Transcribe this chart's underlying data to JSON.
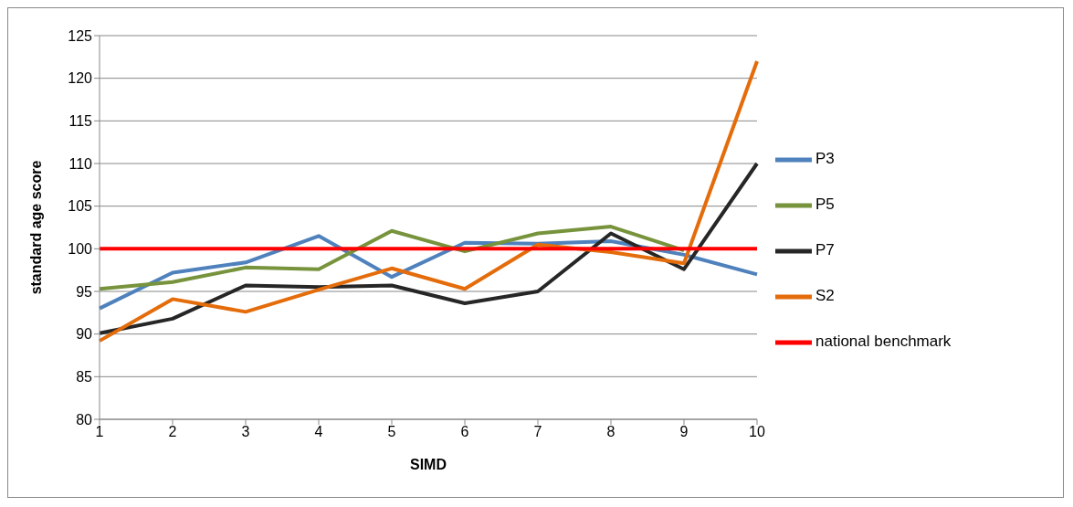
{
  "chart_data": {
    "type": "line",
    "xlabel": "SIMD",
    "ylabel": "standard age score",
    "categories": [
      "1",
      "2",
      "3",
      "4",
      "5",
      "6",
      "7",
      "8",
      "9",
      "10"
    ],
    "series": [
      {
        "name": "P3",
        "color": "#4f81bd",
        "values": [
          93,
          97.2,
          98.4,
          101.5,
          96.7,
          100.7,
          100.6,
          100.9,
          99.3,
          97
        ]
      },
      {
        "name": "P5",
        "color": "#77933c",
        "values": [
          95.3,
          96.1,
          97.8,
          97.6,
          102.1,
          99.7,
          101.8,
          102.6,
          99.8,
          null
        ]
      },
      {
        "name": "P7",
        "color": "#262626",
        "values": [
          90.1,
          91.8,
          95.7,
          95.5,
          95.7,
          93.6,
          95,
          101.8,
          97.6,
          110
        ]
      },
      {
        "name": "S2",
        "color": "#e46c0a",
        "values": [
          89.2,
          94.1,
          92.6,
          95.2,
          97.7,
          95.3,
          100.5,
          99.6,
          98.3,
          122
        ]
      },
      {
        "name": "national benchmark",
        "color": "#ff0000",
        "values": [
          100,
          100,
          100,
          100,
          100,
          100,
          100,
          100,
          100,
          100
        ]
      }
    ],
    "ylim": [
      80,
      125
    ],
    "yticks": [
      80,
      85,
      90,
      95,
      100,
      105,
      110,
      115,
      120,
      125
    ],
    "grid": "y",
    "legend": "right",
    "marker": "none",
    "line_style": "solid"
  }
}
